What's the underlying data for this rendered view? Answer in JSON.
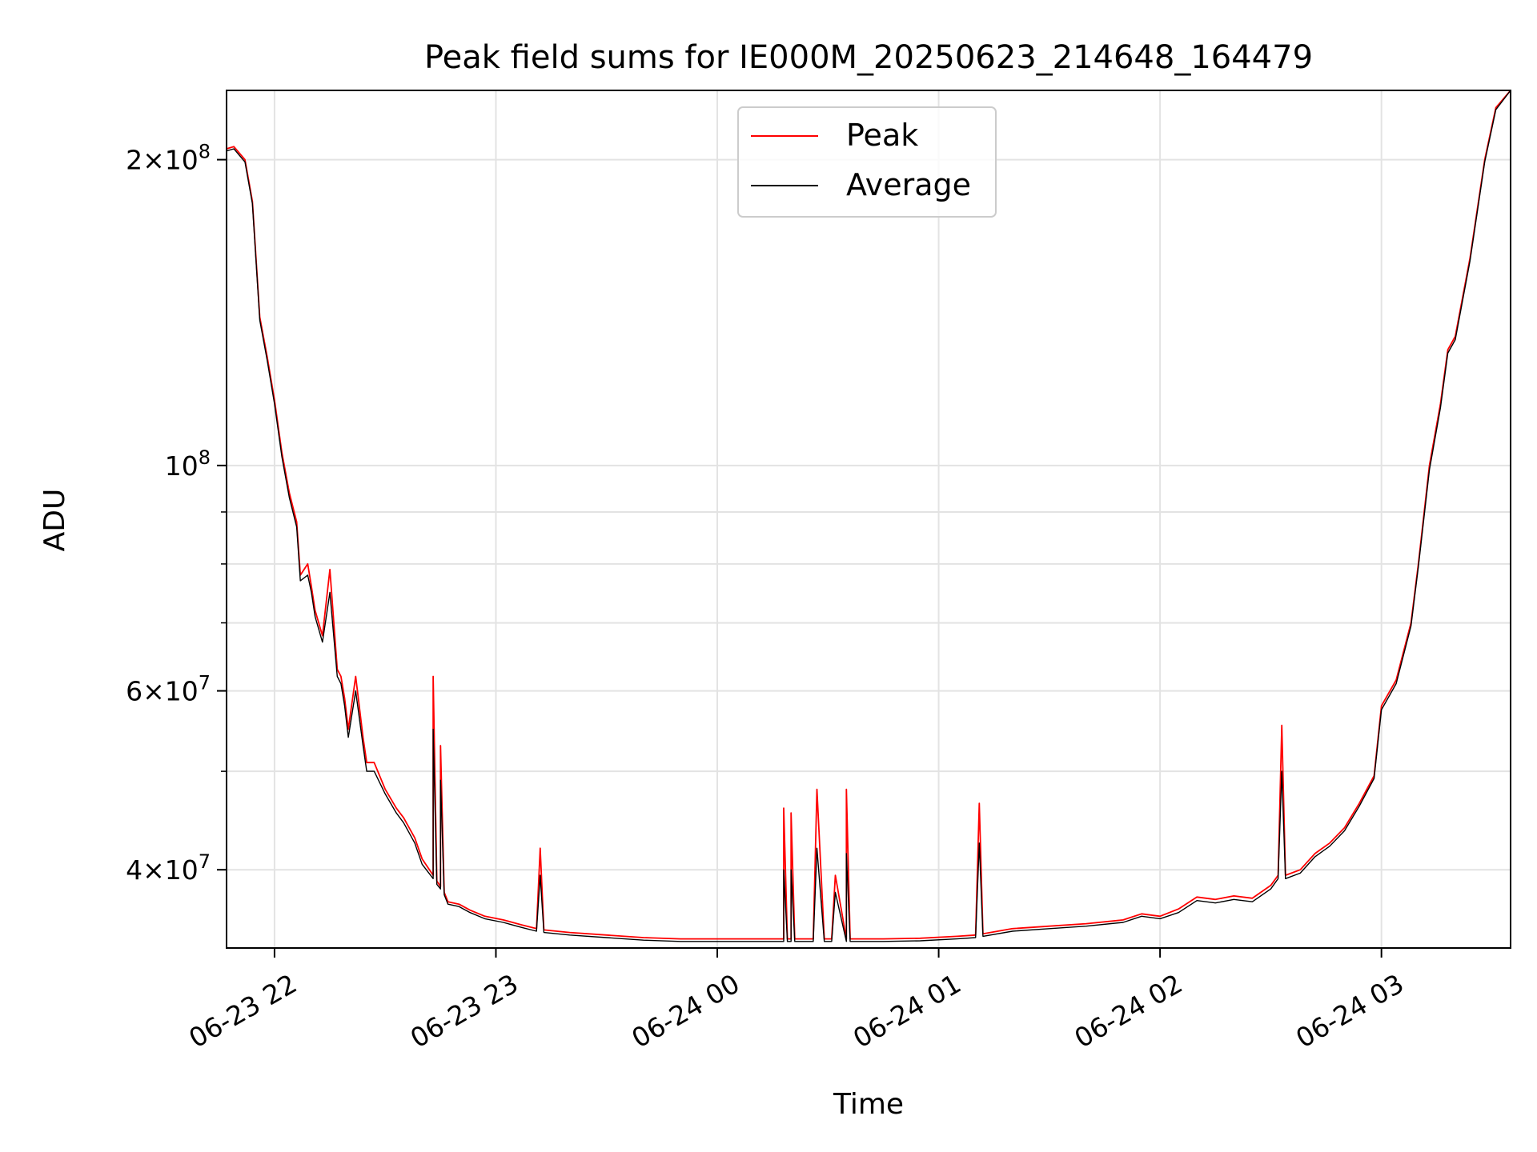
{
  "chart_data": {
    "type": "line",
    "title": "Peak field sums for IE000M_20250623_214648_164479",
    "xlabel": "Time",
    "ylabel": "ADU",
    "yscale": "log",
    "grid": true,
    "legend_placement": "top-center",
    "xlim": [
      "2025-06-23 21:47",
      "2025-06-24 03:35"
    ],
    "ylim": [
      33500000,
      234000000
    ],
    "x_ticks": [
      {
        "value": "2025-06-23 22:00",
        "label": "06-23 22"
      },
      {
        "value": "2025-06-23 23:00",
        "label": "06-23 23"
      },
      {
        "value": "2025-06-24 00:00",
        "label": "06-24 00"
      },
      {
        "value": "2025-06-24 01:00",
        "label": "06-24 01"
      },
      {
        "value": "2025-06-24 02:00",
        "label": "06-24 02"
      },
      {
        "value": "2025-06-24 03:00",
        "label": "06-24 03"
      }
    ],
    "y_ticks": [
      {
        "value": 40000000,
        "base": "4",
        "exp": "7"
      },
      {
        "value": 60000000,
        "base": "6",
        "exp": "7"
      },
      {
        "value": 100000000,
        "base": "",
        "exp": "8"
      },
      {
        "value": 200000000,
        "base": "2",
        "exp": "8"
      }
    ],
    "y_minor_ticks": [
      50000000,
      70000000,
      80000000,
      90000000
    ],
    "series": [
      {
        "name": "Peak",
        "color": "#ff0000",
        "x": [
          "2025-06-23 21:47",
          "2025-06-23 21:49",
          "2025-06-23 21:52",
          "2025-06-23 21:54",
          "2025-06-23 21:56",
          "2025-06-23 21:58",
          "2025-06-23 22:00",
          "2025-06-23 22:02",
          "2025-06-23 22:04",
          "2025-06-23 22:06",
          "2025-06-23 22:07",
          "2025-06-23 22:09",
          "2025-06-23 22:10",
          "2025-06-23 22:11",
          "2025-06-23 22:13",
          "2025-06-23 22:15",
          "2025-06-23 22:17",
          "2025-06-23 22:18",
          "2025-06-23 22:19",
          "2025-06-23 22:20",
          "2025-06-23 22:22",
          "2025-06-23 22:24",
          "2025-06-23 22:25",
          "2025-06-23 22:27",
          "2025-06-23 22:30",
          "2025-06-23 22:33",
          "2025-06-23 22:35",
          "2025-06-23 22:38",
          "2025-06-23 22:40",
          "2025-06-23 22:43",
          "2025-06-23 22:43",
          "2025-06-23 22:44",
          "2025-06-23 22:45",
          "2025-06-23 22:45",
          "2025-06-23 22:46",
          "2025-06-23 22:47",
          "2025-06-23 22:50",
          "2025-06-23 22:53",
          "2025-06-23 22:57",
          "2025-06-23 23:02",
          "2025-06-23 23:07",
          "2025-06-23 23:11",
          "2025-06-23 23:12",
          "2025-06-23 23:13",
          "2025-06-23 23:20",
          "2025-06-23 23:30",
          "2025-06-23 23:40",
          "2025-06-23 23:50",
          "2025-06-24 00:00",
          "2025-06-24 00:10",
          "2025-06-24 00:18",
          "2025-06-24 00:18",
          "2025-06-24 00:19",
          "2025-06-24 00:20",
          "2025-06-24 00:20",
          "2025-06-24 00:21",
          "2025-06-24 00:24",
          "2025-06-24 00:26",
          "2025-06-24 00:27",
          "2025-06-24 00:29",
          "2025-06-24 00:31",
          "2025-06-24 00:32",
          "2025-06-24 00:35",
          "2025-06-24 00:35",
          "2025-06-24 00:36",
          "2025-06-24 00:45",
          "2025-06-24 00:55",
          "2025-06-24 01:05",
          "2025-06-24 01:10",
          "2025-06-24 01:11",
          "2025-06-24 01:12",
          "2025-06-24 01:20",
          "2025-06-24 01:30",
          "2025-06-24 01:40",
          "2025-06-24 01:50",
          "2025-06-24 01:55",
          "2025-06-24 02:00",
          "2025-06-24 02:05",
          "2025-06-24 02:10",
          "2025-06-24 02:15",
          "2025-06-24 02:20",
          "2025-06-24 02:25",
          "2025-06-24 02:30",
          "2025-06-24 02:32",
          "2025-06-24 02:33",
          "2025-06-24 02:34",
          "2025-06-24 02:38",
          "2025-06-24 02:42",
          "2025-06-24 02:46",
          "2025-06-24 02:50",
          "2025-06-24 02:54",
          "2025-06-24 02:58",
          "2025-06-24 03:00",
          "2025-06-24 03:04",
          "2025-06-24 03:08",
          "2025-06-24 03:10",
          "2025-06-24 03:13",
          "2025-06-24 03:16",
          "2025-06-24 03:18",
          "2025-06-24 03:20",
          "2025-06-24 03:24",
          "2025-06-24 03:28",
          "2025-06-24 03:31",
          "2025-06-24 03:35"
        ],
        "values": [
          205000000,
          206000000,
          200000000,
          182000000,
          140000000,
          128000000,
          116000000,
          103000000,
          94000000,
          88000000,
          78000000,
          80000000,
          76000000,
          72000000,
          68000000,
          79000000,
          63000000,
          62000000,
          59000000,
          55000000,
          62000000,
          54000000,
          51000000,
          51000000,
          48000000,
          46000000,
          45000000,
          43000000,
          41000000,
          39500000,
          62000000,
          39000000,
          38500000,
          53000000,
          38000000,
          37200000,
          37000000,
          36500000,
          36000000,
          35700000,
          35300000,
          35000000,
          42000000,
          34900000,
          34700000,
          34500000,
          34300000,
          34200000,
          34200000,
          34200000,
          34200000,
          46000000,
          34200000,
          34200000,
          45500000,
          34200000,
          34200000,
          34200000,
          48000000,
          34200000,
          34200000,
          39500000,
          34200000,
          48000000,
          34200000,
          34200000,
          34250000,
          34400000,
          34500000,
          46500000,
          34600000,
          35000000,
          35200000,
          35400000,
          35700000,
          36200000,
          36000000,
          36600000,
          37600000,
          37400000,
          37700000,
          37500000,
          38600000,
          39500000,
          55500000,
          39500000,
          40000000,
          41500000,
          42500000,
          44000000,
          46500000,
          49500000,
          58000000,
          61500000,
          70000000,
          80000000,
          100000000,
          115000000,
          130000000,
          134000000,
          160000000,
          200000000,
          225000000,
          234000000
        ]
      },
      {
        "name": "Average",
        "color": "#000000",
        "x": [
          "2025-06-23 21:47",
          "2025-06-23 21:49",
          "2025-06-23 21:52",
          "2025-06-23 21:54",
          "2025-06-23 21:56",
          "2025-06-23 21:58",
          "2025-06-23 22:00",
          "2025-06-23 22:02",
          "2025-06-23 22:04",
          "2025-06-23 22:06",
          "2025-06-23 22:07",
          "2025-06-23 22:09",
          "2025-06-23 22:10",
          "2025-06-23 22:11",
          "2025-06-23 22:13",
          "2025-06-23 22:15",
          "2025-06-23 22:17",
          "2025-06-23 22:18",
          "2025-06-23 22:19",
          "2025-06-23 22:20",
          "2025-06-23 22:22",
          "2025-06-23 22:24",
          "2025-06-23 22:25",
          "2025-06-23 22:27",
          "2025-06-23 22:30",
          "2025-06-23 22:33",
          "2025-06-23 22:35",
          "2025-06-23 22:38",
          "2025-06-23 22:40",
          "2025-06-23 22:43",
          "2025-06-23 22:43",
          "2025-06-23 22:44",
          "2025-06-23 22:45",
          "2025-06-23 22:45",
          "2025-06-23 22:46",
          "2025-06-23 22:47",
          "2025-06-23 22:50",
          "2025-06-23 22:53",
          "2025-06-23 22:57",
          "2025-06-23 23:02",
          "2025-06-23 23:07",
          "2025-06-23 23:11",
          "2025-06-23 23:12",
          "2025-06-23 23:13",
          "2025-06-23 23:20",
          "2025-06-23 23:30",
          "2025-06-23 23:40",
          "2025-06-23 23:50",
          "2025-06-24 00:00",
          "2025-06-24 00:10",
          "2025-06-24 00:18",
          "2025-06-24 00:18",
          "2025-06-24 00:19",
          "2025-06-24 00:20",
          "2025-06-24 00:20",
          "2025-06-24 00:21",
          "2025-06-24 00:24",
          "2025-06-24 00:26",
          "2025-06-24 00:27",
          "2025-06-24 00:29",
          "2025-06-24 00:31",
          "2025-06-24 00:32",
          "2025-06-24 00:35",
          "2025-06-24 00:35",
          "2025-06-24 00:36",
          "2025-06-24 00:45",
          "2025-06-24 00:55",
          "2025-06-24 01:05",
          "2025-06-24 01:10",
          "2025-06-24 01:11",
          "2025-06-24 01:12",
          "2025-06-24 01:20",
          "2025-06-24 01:30",
          "2025-06-24 01:40",
          "2025-06-24 01:50",
          "2025-06-24 01:55",
          "2025-06-24 02:00",
          "2025-06-24 02:05",
          "2025-06-24 02:10",
          "2025-06-24 02:15",
          "2025-06-24 02:20",
          "2025-06-24 02:25",
          "2025-06-24 02:30",
          "2025-06-24 02:32",
          "2025-06-24 02:33",
          "2025-06-24 02:34",
          "2025-06-24 02:38",
          "2025-06-24 02:42",
          "2025-06-24 02:46",
          "2025-06-24 02:50",
          "2025-06-24 02:54",
          "2025-06-24 02:58",
          "2025-06-24 03:00",
          "2025-06-24 03:04",
          "2025-06-24 03:08",
          "2025-06-24 03:10",
          "2025-06-24 03:13",
          "2025-06-24 03:16",
          "2025-06-24 03:18",
          "2025-06-24 03:20",
          "2025-06-24 03:24",
          "2025-06-24 03:28",
          "2025-06-24 03:31",
          "2025-06-24 03:35"
        ],
        "values": [
          204000000,
          205000000,
          199000000,
          181000000,
          139000000,
          127000000,
          115000000,
          102000000,
          93000000,
          87000000,
          77000000,
          78000000,
          75000000,
          71000000,
          67000000,
          75000000,
          62000000,
          61000000,
          58000000,
          54000000,
          60000000,
          53000000,
          50000000,
          50000000,
          47500000,
          45500000,
          44500000,
          42500000,
          40500000,
          39200000,
          55000000,
          38700000,
          38300000,
          49000000,
          37800000,
          37000000,
          36800000,
          36300000,
          35800000,
          35500000,
          35100000,
          34800000,
          39500000,
          34700000,
          34500000,
          34300000,
          34100000,
          34000000,
          34000000,
          34000000,
          34000000,
          40000000,
          34000000,
          34000000,
          40000000,
          34000000,
          34000000,
          34000000,
          42000000,
          34000000,
          34000000,
          38000000,
          34000000,
          41500000,
          34000000,
          34000000,
          34050000,
          34200000,
          34300000,
          42500000,
          34400000,
          34800000,
          35000000,
          35200000,
          35500000,
          36000000,
          35800000,
          36300000,
          37300000,
          37100000,
          37400000,
          37200000,
          38300000,
          39200000,
          50000000,
          39200000,
          39700000,
          41200000,
          42200000,
          43700000,
          46200000,
          49200000,
          57500000,
          61000000,
          69500000,
          79500000,
          99000000,
          114000000,
          129000000,
          133000000,
          159000000,
          199000000,
          224000000,
          234000000
        ]
      }
    ]
  }
}
